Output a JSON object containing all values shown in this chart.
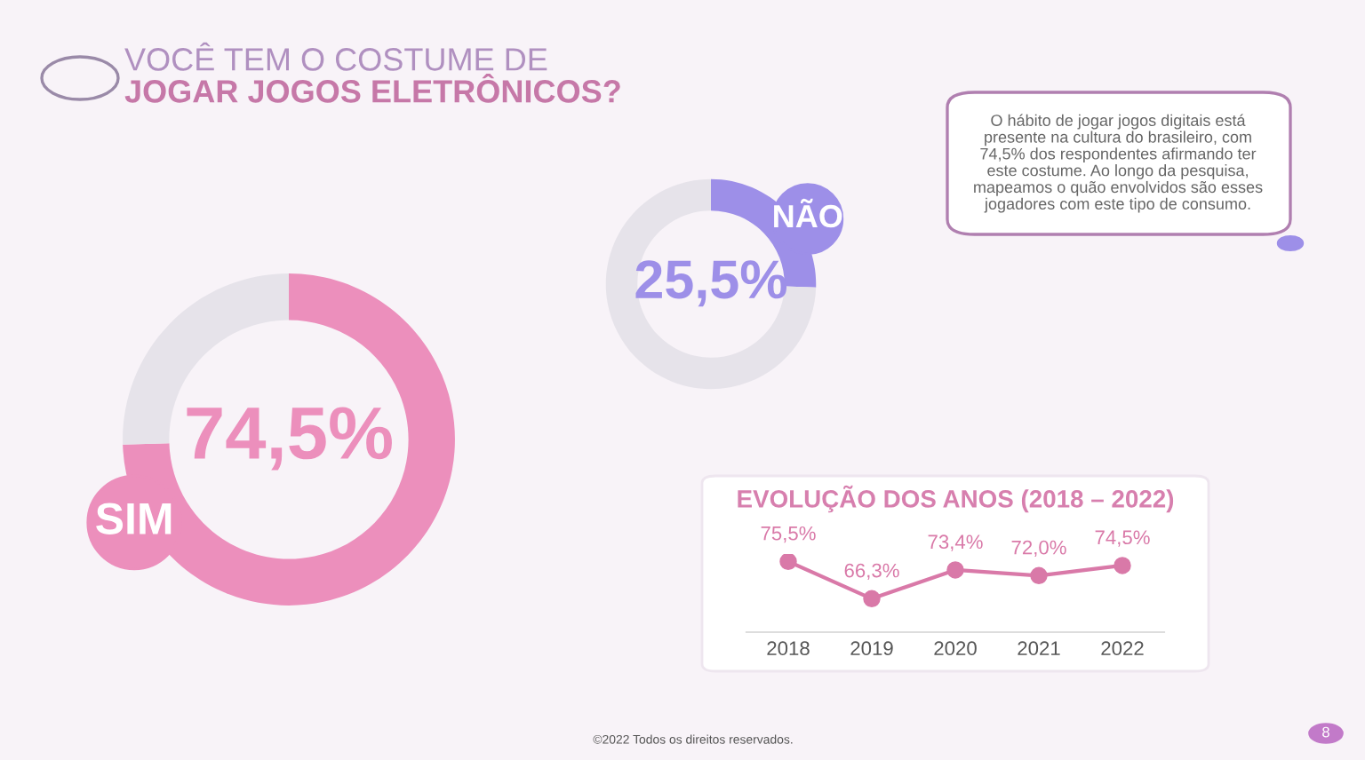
{
  "chart_data": [
    {
      "type": "donut",
      "categories": [
        "SIM",
        null
      ],
      "values": [
        74.5,
        25.5
      ],
      "colors": [
        "#ec8fbc",
        "#e6e3ea"
      ],
      "value_labels": [
        "74,5%",
        null
      ],
      "legend": false
    },
    {
      "type": "donut",
      "categories": [
        "NÃO",
        null
      ],
      "values": [
        25.5,
        74.5
      ],
      "colors": [
        "#9d8fe8",
        "#e6e3ea"
      ],
      "value_labels": [
        "25,5%",
        null
      ],
      "legend": false
    },
    {
      "type": "line",
      "title": "EVOLUÇÃO DOS ANOS (2018 – 2022)",
      "categories": [
        "2018",
        "2019",
        "2020",
        "2021",
        "2022"
      ],
      "series": [
        {
          "color": "#d979a8",
          "values": [
            75.5,
            66.3,
            73.4,
            72.0,
            74.5
          ],
          "value_labels": [
            "75,5%",
            "66,3%",
            "73,4%",
            "72,0%",
            "74,5%"
          ]
        }
      ],
      "marker": "circle",
      "line_style": "solid",
      "grid": false,
      "legend": false,
      "tick_labels": "x"
    },
    {
      "type": "other",
      "title": "VOCÊ TEM O COSTUME DE\nJOGAR JOGOS ELETRÔNICOS?",
      "annotations": [
        "O hábito de jogar jogos digitais está\npresente na cultura do brasileiro, com\n74,5% dos respondentes afirmando ter\neste costume. Ao longo da pesquisa,\nmapeamos o quão envolvidos são esses\njogadores com este tipo de consumo.",
        "©2022 Todos os direitos reservados.",
        "8"
      ]
    }
  ]
}
